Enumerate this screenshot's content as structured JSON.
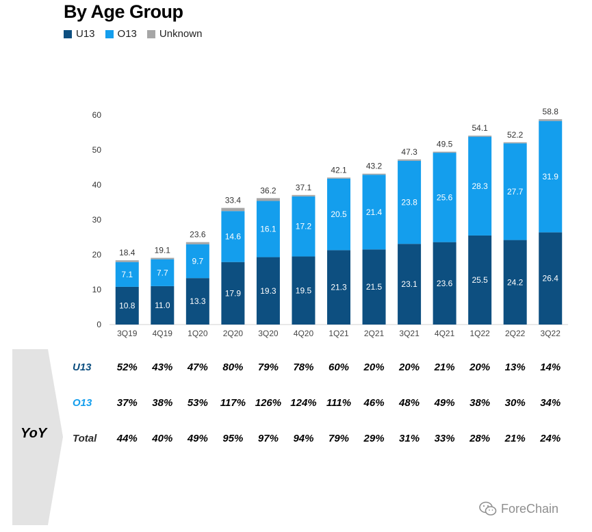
{
  "title": "By Age Group",
  "legend": [
    {
      "name": "U13",
      "color": "#0d4f80"
    },
    {
      "name": "O13",
      "color": "#149eed"
    },
    {
      "name": "Unknown",
      "color": "#a6a6a6"
    }
  ],
  "chart_data": {
    "type": "bar",
    "stacked": true,
    "categories": [
      "3Q19",
      "4Q19",
      "1Q20",
      "2Q20",
      "3Q20",
      "4Q20",
      "1Q21",
      "2Q21",
      "3Q21",
      "4Q21",
      "1Q22",
      "2Q22",
      "3Q22"
    ],
    "series": [
      {
        "name": "U13",
        "color": "#0d4f80",
        "values": [
          10.8,
          11.0,
          13.3,
          17.9,
          19.3,
          19.5,
          21.3,
          21.5,
          23.1,
          23.6,
          25.5,
          24.2,
          26.4
        ],
        "labels": [
          "10.8",
          "11.0",
          "13.3",
          "17.9",
          "19.3",
          "19.5",
          "21.3",
          "21.5",
          "23.1",
          "23.6",
          "25.5",
          "24.2",
          "26.4"
        ]
      },
      {
        "name": "O13",
        "color": "#149eed",
        "values": [
          7.1,
          7.7,
          9.7,
          14.6,
          16.1,
          17.2,
          20.5,
          21.4,
          23.8,
          25.6,
          28.3,
          27.7,
          31.9
        ],
        "labels": [
          "7.1",
          "7.7",
          "9.7",
          "14.6",
          "16.1",
          "17.2",
          "20.5",
          "21.4",
          "23.8",
          "25.6",
          "28.3",
          "27.7",
          "31.9"
        ]
      },
      {
        "name": "Unknown",
        "color": "#a6a6a6",
        "values": [
          0.5,
          0.4,
          0.6,
          0.9,
          0.8,
          0.4,
          0.3,
          0.3,
          0.4,
          0.3,
          0.3,
          0.3,
          0.5
        ]
      }
    ],
    "totals": [
      "18.4",
      "19.1",
      "23.6",
      "33.4",
      "36.2",
      "37.1",
      "42.1",
      "43.2",
      "47.3",
      "49.5",
      "54.1",
      "52.2",
      "58.8"
    ],
    "yticks": [
      "0",
      "10",
      "20",
      "30",
      "40",
      "50",
      "60"
    ],
    "ylim": [
      0,
      60
    ],
    "grid": false,
    "legend_position": "top-left"
  },
  "yoy": {
    "label": "YoY",
    "rows": [
      {
        "name": "U13",
        "color": "#0d4f80",
        "values": [
          "52%",
          "43%",
          "47%",
          "80%",
          "79%",
          "78%",
          "60%",
          "20%",
          "20%",
          "21%",
          "20%",
          "13%",
          "14%"
        ]
      },
      {
        "name": "O13",
        "color": "#149eed",
        "values": [
          "37%",
          "38%",
          "53%",
          "117%",
          "126%",
          "124%",
          "111%",
          "46%",
          "48%",
          "49%",
          "38%",
          "30%",
          "34%"
        ]
      },
      {
        "name": "Total",
        "color": "#2b2b2b",
        "values": [
          "44%",
          "40%",
          "49%",
          "95%",
          "97%",
          "94%",
          "79%",
          "29%",
          "31%",
          "33%",
          "28%",
          "21%",
          "24%"
        ]
      }
    ]
  },
  "watermark": {
    "text": "ForeChain",
    "icon": "wechat-icon"
  }
}
